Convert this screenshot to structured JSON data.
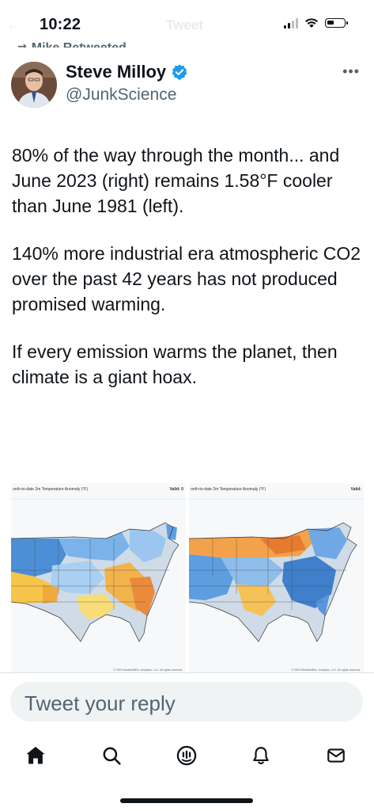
{
  "status_bar": {
    "time": "10:22",
    "ghost_title": "Tweet",
    "ghost_back": "←"
  },
  "retweet_header": {
    "icon": "retweet-icon",
    "label": "Mike Retweeted"
  },
  "author": {
    "name": "Steve Milloy",
    "handle": "@JunkScience",
    "verified": true,
    "verified_color": "#1d9bf0"
  },
  "more_label": "•••",
  "tweet": {
    "paragraph_1": "80% of the way through the month... and June 2023 (right) remains 1.58°F cooler than June 1981 (left).",
    "paragraph_2": "140% more industrial era atmospheric CO2 over the past 42 years has not produced promised warming.",
    "paragraph_3": "If every emission warms the planet, then climate is a giant hoax."
  },
  "media": [
    {
      "title": "onth-to-date 2m Temperature Anomaly (°F)",
      "valid": "Valid: 0",
      "credit": "© 2023 WeatherBELL Analytics, LLC. All rights reserved."
    },
    {
      "title": "onth-to-date 2m Temperature Anomaly (°F)",
      "valid": "Valid:",
      "credit": "© 2023 WeatherBELL Analytics, LLC. All rights reserved."
    }
  ],
  "reply": {
    "placeholder": "Tweet your reply"
  },
  "tabbar": {
    "items": [
      {
        "icon": "home-icon",
        "active": true
      },
      {
        "icon": "search-icon",
        "active": false
      },
      {
        "icon": "spaces-icon",
        "active": false
      },
      {
        "icon": "notifications-icon",
        "active": false
      },
      {
        "icon": "messages-icon",
        "active": false
      }
    ]
  },
  "colors": {
    "text": "#0f1419",
    "secondary": "#536471",
    "accent": "#1d9bf0",
    "reply_bg": "#eff3f4"
  }
}
